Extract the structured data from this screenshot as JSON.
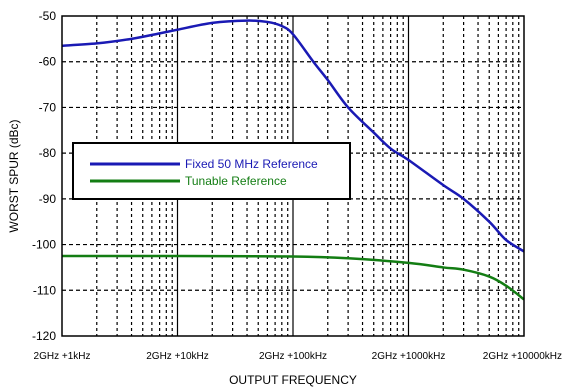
{
  "chart_data": {
    "type": "line",
    "title": "",
    "xlabel": "OUTPUT FREQUENCY",
    "ylabel": "WORST SPUR (dBc)",
    "x_scale": "log",
    "x_unit_label": "kHz offset",
    "xlim": [
      1,
      10000
    ],
    "ylim": [
      -120,
      -50
    ],
    "grid": true,
    "legend_position": "left-middle",
    "x_tick_values": [
      1,
      10,
      100,
      1000,
      10000
    ],
    "x_tick_labels": [
      "2GHz +1kHz",
      "2GHz +10kHz",
      "2GHz +100kHz",
      "2GHz +1000kHz",
      "2GHz +10000kHz"
    ],
    "y_tick_values": [
      -50,
      -60,
      -70,
      -80,
      -90,
      -100,
      -110,
      -120
    ],
    "y_tick_labels": [
      "-50",
      "-60",
      "-70",
      "-80",
      "-90",
      "-100",
      "-110",
      "-120"
    ],
    "series": [
      {
        "name": "Fixed 50 MHz Reference",
        "color": "#1a1ab4",
        "x": [
          1,
          2,
          4,
          7,
          10,
          20,
          40,
          60,
          80,
          100,
          150,
          200,
          300,
          500,
          700,
          1000,
          2000,
          3000,
          5000,
          7000,
          10000
        ],
        "y": [
          -56.5,
          -56,
          -55,
          -53.8,
          -53,
          -51.5,
          -51,
          -51.3,
          -52.2,
          -54,
          -60,
          -64,
          -70,
          -75.5,
          -79,
          -81.5,
          -87,
          -90,
          -95,
          -99,
          -101.5
        ]
      },
      {
        "name": "Tunable Reference",
        "color": "#137d13",
        "x": [
          1,
          10,
          100,
          300,
          1000,
          2000,
          3000,
          5000,
          7000,
          10000
        ],
        "y": [
          -102.5,
          -102.5,
          -102.6,
          -103,
          -104,
          -105,
          -105.5,
          -107,
          -109,
          -112
        ]
      }
    ]
  }
}
